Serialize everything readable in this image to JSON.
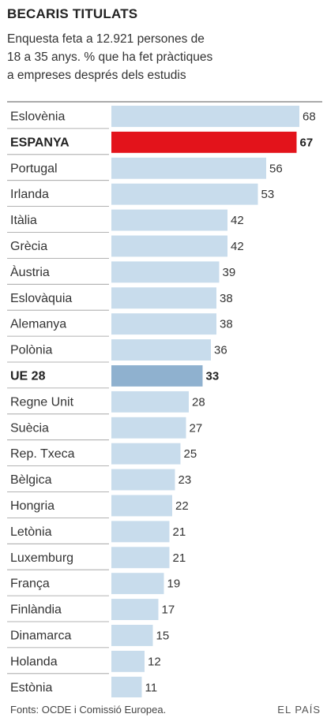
{
  "chart_data": {
    "type": "bar",
    "orientation": "horizontal",
    "title": "BECARIS TITULATS",
    "subtitle_lines": [
      "Enquesta feta a 12.921 persones de",
      "18 a 35 anys. % que ha fet pràctiques",
      "a empreses després dels estudis"
    ],
    "categories": [
      "Eslovènia",
      "ESPANYA",
      "Portugal",
      "Irlanda",
      "Itàlia",
      "Grècia",
      "Àustria",
      "Eslovàquia",
      "Alemanya",
      "Polònia",
      "UE 28",
      "Regne Unit",
      "Suècia",
      "Rep. Txeca",
      "Bèlgica",
      "Hongria",
      "Letònia",
      "Luxemburg",
      "França",
      "Finlàndia",
      "Dinamarca",
      "Holanda",
      "Estònia"
    ],
    "values": [
      68,
      67,
      56,
      53,
      42,
      42,
      39,
      38,
      38,
      36,
      33,
      28,
      27,
      25,
      23,
      22,
      21,
      21,
      19,
      17,
      15,
      12,
      11
    ],
    "highlight": {
      "ESPANYA": "#e3131b",
      "UE 28": "#8fb1cf"
    },
    "bold_categories": [
      "ESPANYA",
      "UE 28"
    ],
    "bar_color": "#c8dcec",
    "xlim": [
      0,
      68
    ],
    "grid": false
  },
  "footer": {
    "source": "Fonts: OCDE i Comissió Europea.",
    "brand": "EL PAÍS"
  }
}
